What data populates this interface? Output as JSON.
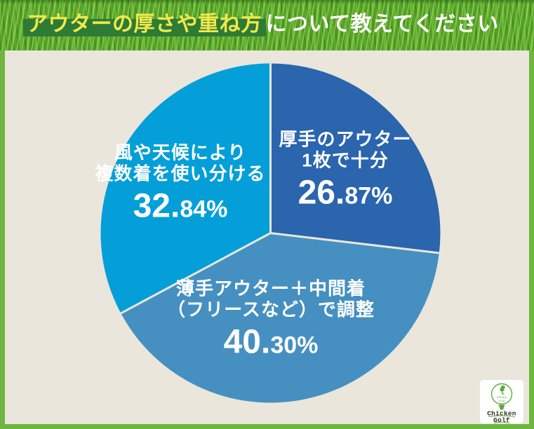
{
  "header": {
    "title_highlight": "アウターの厚さや重ね方",
    "title_rest": "について教えてください"
  },
  "chart_data": {
    "type": "pie",
    "title": "アウターの厚さや重ね方について教えてください",
    "start_angle_deg": 0,
    "direction": "clockwise",
    "separator_color": "#eae6db",
    "segments": [
      {
        "id": "thick-outer-enough",
        "label": "厚手のアウター1枚で十分",
        "value": 26.87,
        "color": "#2a65ae"
      },
      {
        "id": "thin-outer-midlayer",
        "label": "薄手アウター＋中間着（フリースなど）で調整",
        "value": 40.3,
        "color": "#4590c0"
      },
      {
        "id": "multiple-by-weather",
        "label": "風や天候により複数着を使い分ける",
        "value": 32.84,
        "color": "#049fd9"
      }
    ]
  },
  "slice_labels": {
    "thick": {
      "line1": "厚手のアウター",
      "line2": "1枚で十分",
      "pct_main": "26.",
      "pct_small": "87%"
    },
    "thin_mid": {
      "line1": "薄手アウター＋中間着",
      "line2": "（フリースなど）で調整",
      "pct_main": "40.",
      "pct_small": "30%"
    },
    "multi": {
      "line1": "風や天候により",
      "line2": "複数着を使い分ける",
      "pct_main": "32.",
      "pct_small": "84%"
    }
  },
  "logo": {
    "name": "Chicken Golf",
    "line1": "Chicken",
    "line2": "Golf",
    "accent_color": "#5aab3a"
  },
  "colors": {
    "frame_border": "#6fb640",
    "background": "#eae6db",
    "banner_base": "#57a52c",
    "title_highlight_bg": "#2e7b36",
    "title_highlight_text": "#f2e84b",
    "title_rest_text": "#ffffff",
    "label_text": "#ffffff"
  }
}
